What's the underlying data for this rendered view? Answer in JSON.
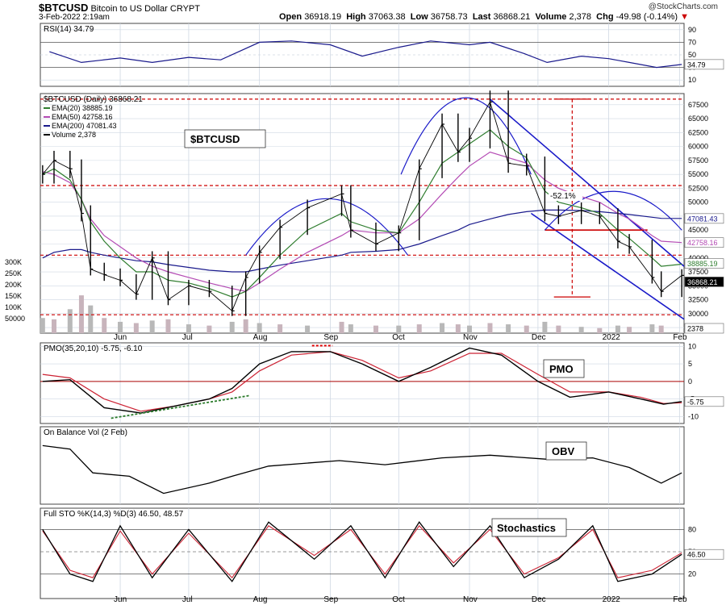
{
  "header": {
    "symbol": "$BTCUSD",
    "name": "Bitcoin to US Dollar",
    "exchange": "CRYPT",
    "date": "3-Feb-2022 2:19am",
    "open_label": "Open",
    "open": "36918.19",
    "high_label": "High",
    "high": "37063.38",
    "low_label": "Low",
    "low": "36758.73",
    "last_label": "Last",
    "last": "36868.21",
    "volume_label": "Volume",
    "volume": "2,378",
    "chg_label": "Chg",
    "chg": "-49.98 (-0.14%)",
    "credit": "@StockCharts.com"
  },
  "colors": {
    "price": "#000000",
    "ema20": "#2f7d2f",
    "ema50": "#b44bb4",
    "ema200": "#1a1a8c",
    "trend": "#1919c8",
    "support": "#cc0000",
    "pmo_signal": "#cc2233",
    "volume_up": "#c8b4bc",
    "volume_down": "#b8b8b8",
    "grid": "#cfd8e3",
    "badge": "#333333"
  },
  "chart_data": [
    {
      "panel": "rsi",
      "type": "line",
      "title": "RSI(14) 34.79",
      "y_ticks": [
        10,
        30,
        50,
        70,
        90
      ],
      "ylim": [
        0,
        100
      ],
      "badge": "34.79",
      "x_dates": [
        "2021-05-01",
        "2021-05-15",
        "2021-06-01",
        "2021-06-15",
        "2021-07-01",
        "2021-07-15",
        "2021-08-01",
        "2021-08-15",
        "2021-09-01",
        "2021-09-15",
        "2021-10-01",
        "2021-10-15",
        "2021-11-01",
        "2021-11-10",
        "2021-11-25",
        "2021-12-05",
        "2021-12-20",
        "2022-01-01",
        "2022-01-10",
        "2022-01-22",
        "2022-02-02"
      ],
      "values": [
        55,
        38,
        45,
        38,
        46,
        42,
        70,
        72,
        66,
        48,
        62,
        72,
        66,
        70,
        52,
        38,
        48,
        44,
        38,
        30,
        34.79
      ]
    },
    {
      "panel": "price",
      "type": "line",
      "title": "$BTCUSD (Daily) 36868.21",
      "label_box": "$BTCUSD",
      "legend": [
        {
          "name": "EMA(20) 38885.19"
        },
        {
          "name": "EMA(50) 42758.16"
        },
        {
          "name": "EMA(200) 47081.43"
        },
        {
          "name": "Volume 2,378"
        }
      ],
      "y_ticks": [
        27500,
        30000,
        32500,
        35000,
        37500,
        40000,
        42500,
        45000,
        47500,
        50000,
        52500,
        55000,
        57500,
        60000,
        62500,
        65000,
        67500
      ],
      "ylim": [
        26500,
        69500
      ],
      "vol_ticks": [
        "300K",
        "250K",
        "200K",
        "150K",
        "100K",
        "50000"
      ],
      "badges": {
        "last": "36868.21",
        "ema20": "38885.19",
        "ema50": "42758.16",
        "ema200": "47081.43",
        "volume": "2378"
      },
      "annotation": "-52.1%",
      "support_levels": [
        68500,
        53000,
        40500,
        29800
      ],
      "x_dates": [
        "2021-04-28",
        "2021-05-03",
        "2021-05-10",
        "2021-05-15",
        "2021-05-19",
        "2021-05-25",
        "2021-06-01",
        "2021-06-08",
        "2021-06-15",
        "2021-06-22",
        "2021-07-01",
        "2021-07-10",
        "2021-07-20",
        "2021-07-26",
        "2021-08-01",
        "2021-08-10",
        "2021-08-22",
        "2021-09-06",
        "2021-09-10",
        "2021-09-21",
        "2021-10-01",
        "2021-10-10",
        "2021-10-20",
        "2021-10-27",
        "2021-11-01",
        "2021-11-10",
        "2021-11-18",
        "2021-11-26",
        "2021-12-04",
        "2021-12-10",
        "2021-12-20",
        "2021-12-28",
        "2022-01-05",
        "2022-01-10",
        "2022-01-20",
        "2022-01-24",
        "2022-02-02"
      ],
      "close": [
        55000,
        57500,
        56000,
        48000,
        38000,
        37000,
        36000,
        33500,
        40000,
        32500,
        35000,
        34000,
        30500,
        36500,
        41000,
        45500,
        49000,
        51500,
        45000,
        42500,
        44500,
        56000,
        64000,
        59000,
        61500,
        68000,
        57000,
        56500,
        48000,
        47500,
        48500,
        47500,
        43000,
        42000,
        36500,
        34000,
        36868.21
      ],
      "ema20": [
        55000,
        56000,
        54000,
        50500,
        46500,
        43000,
        40000,
        37500,
        37500,
        36000,
        35500,
        34500,
        33000,
        34000,
        36500,
        40500,
        45000,
        48000,
        46500,
        45000,
        44500,
        50000,
        57000,
        59000,
        60500,
        63000,
        60000,
        58000,
        52000,
        50000,
        49000,
        48000,
        45000,
        43500,
        40000,
        38500,
        38885.19
      ],
      "ema50": [
        55500,
        55000,
        53500,
        50500,
        47000,
        44000,
        42000,
        40000,
        38500,
        37500,
        36500,
        35500,
        34500,
        34000,
        35500,
        38000,
        41000,
        44000,
        45000,
        44500,
        44500,
        47000,
        51500,
        54500,
        56500,
        59000,
        58000,
        57000,
        54000,
        52500,
        51000,
        50000,
        48000,
        47000,
        44000,
        43000,
        42758.16
      ],
      "ema200": [
        40000,
        41000,
        41500,
        41500,
        41000,
        40500,
        40000,
        39500,
        39300,
        38800,
        38300,
        37800,
        37500,
        37500,
        38000,
        38700,
        39500,
        40500,
        41000,
        41200,
        41500,
        42500,
        44000,
        45000,
        46000,
        47000,
        47800,
        48300,
        48600,
        48600,
        48500,
        48300,
        48000,
        47800,
        47300,
        47100,
        47081.43
      ],
      "volume_k": [
        60,
        55,
        95,
        150,
        110,
        60,
        45,
        40,
        50,
        55,
        35,
        30,
        45,
        55,
        40,
        35,
        30,
        45,
        35,
        30,
        30,
        35,
        40,
        35,
        30,
        40,
        35,
        30,
        45,
        30,
        25,
        20,
        30,
        25,
        35,
        30,
        2.378
      ]
    },
    {
      "panel": "pmo",
      "type": "line",
      "title": "PMO(35,20,10) -5.75, -6.10",
      "label_box": "PMO",
      "y_ticks": [
        -10,
        -5,
        0,
        5,
        10
      ],
      "ylim": [
        -12,
        11
      ],
      "badge": "-5.75",
      "x_dates": [
        "2021-04-28",
        "2021-05-10",
        "2021-05-25",
        "2021-06-10",
        "2021-06-25",
        "2021-07-10",
        "2021-07-20",
        "2021-08-01",
        "2021-08-15",
        "2021-09-01",
        "2021-09-15",
        "2021-10-01",
        "2021-10-15",
        "2021-11-01",
        "2021-11-15",
        "2021-12-01",
        "2021-12-15",
        "2022-01-01",
        "2022-01-15",
        "2022-01-25",
        "2022-02-02"
      ],
      "pmo": [
        0,
        0.5,
        -7.5,
        -9,
        -7,
        -5,
        -2,
        5,
        8.5,
        8.5,
        5,
        0,
        4,
        9.5,
        7.5,
        0,
        -4.5,
        -3,
        -5,
        -6.5,
        -5.75
      ],
      "signal": [
        2,
        1,
        -5,
        -8.5,
        -7,
        -5,
        -3,
        3,
        7.5,
        8.5,
        6,
        1,
        3,
        8,
        8,
        2,
        -3,
        -3,
        -4.5,
        -6.3,
        -6.1
      ]
    },
    {
      "panel": "obv",
      "type": "line",
      "title": "On Balance Vol (2 Feb)",
      "label_box": "OBV",
      "x_dates": [
        "2021-04-28",
        "2021-05-10",
        "2021-05-20",
        "2021-06-05",
        "2021-06-20",
        "2021-07-10",
        "2021-07-20",
        "2021-08-05",
        "2021-09-05",
        "2021-09-25",
        "2021-10-20",
        "2021-11-10",
        "2021-12-05",
        "2021-12-25",
        "2022-01-10",
        "2022-01-24",
        "2022-02-02"
      ],
      "values": [
        100,
        95,
        60,
        55,
        30,
        45,
        55,
        70,
        78,
        72,
        82,
        86,
        80,
        82,
        68,
        45,
        60
      ]
    },
    {
      "panel": "stochastics",
      "type": "line",
      "title": "Full STO %K(14,3) %D(3) 46.50, 48.57",
      "label_box": "Stochastics",
      "y_ticks": [
        20,
        50,
        80
      ],
      "ylim": [
        0,
        100
      ],
      "badge": "46.50",
      "x_dates": [
        "2021-04-28",
        "2021-05-10",
        "2021-05-20",
        "2021-06-01",
        "2021-06-15",
        "2021-07-01",
        "2021-07-20",
        "2021-08-05",
        "2021-08-25",
        "2021-09-10",
        "2021-09-25",
        "2021-10-10",
        "2021-10-25",
        "2021-11-10",
        "2021-11-25",
        "2021-12-10",
        "2021-12-25",
        "2022-01-05",
        "2022-01-20",
        "2022-02-02"
      ],
      "k": [
        80,
        20,
        10,
        85,
        15,
        80,
        10,
        90,
        40,
        85,
        15,
        90,
        30,
        85,
        15,
        40,
        85,
        10,
        20,
        46.5
      ],
      "d": [
        78,
        25,
        15,
        78,
        20,
        75,
        15,
        85,
        45,
        80,
        20,
        85,
        35,
        80,
        20,
        42,
        80,
        15,
        25,
        48.57
      ]
    }
  ],
  "x_axis_labels": [
    "Jun",
    "Jul",
    "Aug",
    "Sep",
    "Oct",
    "Nov",
    "Dec",
    "2022",
    "Feb"
  ]
}
